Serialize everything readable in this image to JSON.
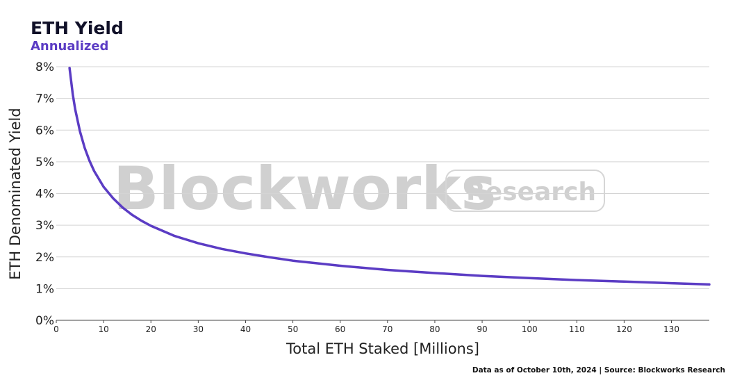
{
  "header": {
    "title": "ETH Yield",
    "subtitle": "Annualized"
  },
  "watermark": {
    "brand": "Blockworks",
    "badge": "Research"
  },
  "footer": {
    "source": "Data as of October 10th, 2024 | Source: Blockworks Research"
  },
  "colors": {
    "line": "#5b3cc4",
    "grid": "#d4d4d4",
    "subtitle": "#5b3cc4"
  },
  "chart_data": {
    "type": "line",
    "title": "ETH Yield",
    "subtitle": "Annualized",
    "xlabel": "Total ETH Staked [Millions]",
    "ylabel": "ETH Denominated Yield",
    "xlim": [
      0,
      138
    ],
    "ylim": [
      0,
      8
    ],
    "x_ticks": [
      0,
      10,
      20,
      30,
      40,
      50,
      60,
      70,
      80,
      90,
      100,
      110,
      120,
      130
    ],
    "y_ticks": [
      0,
      1,
      2,
      3,
      4,
      5,
      6,
      7,
      8
    ],
    "y_tick_labels": [
      "0%",
      "1%",
      "2%",
      "3%",
      "4%",
      "5%",
      "6%",
      "7%",
      "8%"
    ],
    "grid": "horizontal",
    "series": [
      {
        "x": [
          2.8,
          3.5,
          4,
          5,
          6,
          7,
          8,
          10,
          12,
          14,
          16,
          18,
          20,
          25,
          30,
          35,
          40,
          45,
          50,
          60,
          70,
          80,
          90,
          100,
          110,
          120,
          130,
          138
        ],
        "y": [
          7.96,
          7.12,
          6.66,
          5.96,
          5.44,
          5.04,
          4.71,
          4.21,
          3.85,
          3.56,
          3.33,
          3.14,
          2.98,
          2.66,
          2.43,
          2.25,
          2.11,
          1.99,
          1.88,
          1.72,
          1.59,
          1.49,
          1.4,
          1.33,
          1.27,
          1.22,
          1.17,
          1.13
        ]
      }
    ]
  }
}
